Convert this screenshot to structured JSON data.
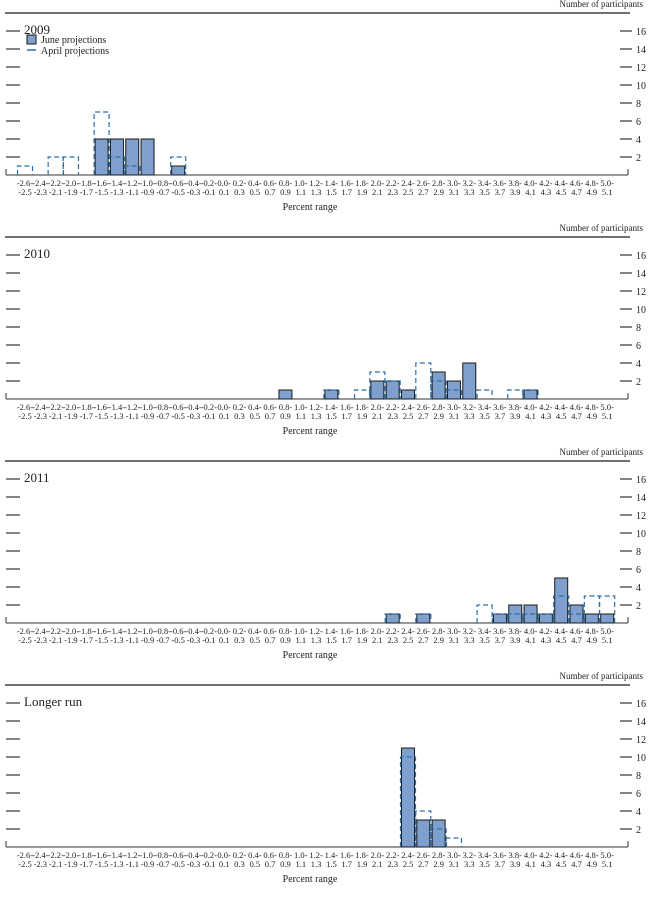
{
  "chart_data": {
    "type": "bar",
    "ylabel": "Number of participants",
    "xlabel": "Percent range",
    "ylim": [
      0,
      17
    ],
    "yticks": [
      2,
      4,
      6,
      8,
      10,
      12,
      14,
      16
    ],
    "legend": {
      "placement": "top-left",
      "june": "June projections",
      "april": "April projections"
    },
    "colors": {
      "june_fill": "#7f9fcc",
      "june_stroke": "#1a1a1a",
      "april_stroke": "#2a6fa8",
      "axis": "#333333"
    },
    "bins_lo": [
      "-2.6",
      "-2.4",
      "-2.2",
      "-2.0",
      "-1.8",
      "-1.6",
      "-1.4",
      "-1.2",
      "-1.0",
      "-0.8",
      "-0.6",
      "-0.4",
      "-0.2",
      "0.0",
      "0.2",
      "0.4",
      "0.6",
      "0.8",
      "1.0",
      "1.2",
      "1.4",
      "1.6",
      "1.8",
      "2.0",
      "2.2",
      "2.4",
      "2.6",
      "2.8",
      "3.0",
      "3.2",
      "3.4",
      "3.6",
      "3.8",
      "4.0",
      "4.2",
      "4.4",
      "4.6",
      "4.8",
      "5.0"
    ],
    "bins_hi": [
      "-2.5",
      "-2.3",
      "-2.1",
      "-1.9",
      "-1.7",
      "-1.5",
      "-1.3",
      "-1.1",
      "-0.9",
      "-0.7",
      "-0.5",
      "-0.3",
      "-0.1",
      "0.1",
      "0.3",
      "0.5",
      "0.7",
      "0.9",
      "1.1",
      "1.3",
      "1.5",
      "1.7",
      "1.9",
      "2.1",
      "2.3",
      "2.5",
      "2.7",
      "2.9",
      "3.1",
      "3.3",
      "3.5",
      "3.7",
      "3.9",
      "4.1",
      "4.3",
      "4.5",
      "4.7",
      "4.9",
      "5.1"
    ],
    "panels": [
      {
        "title": "2009",
        "legend": true,
        "june": {
          "-1.6": 4,
          "-1.4": 4,
          "-1.2": 4,
          "-1.0": 4,
          "-0.6": 1
        },
        "april": {
          "-2.6": 1,
          "-2.2": 2,
          "-2.0": 2,
          "-1.6": 7,
          "-1.4": 2,
          "-1.2": 1,
          "-0.6": 2
        }
      },
      {
        "title": "2010",
        "legend": false,
        "june": {
          "0.8": 1,
          "1.4": 1,
          "2.0": 2,
          "2.2": 2,
          "2.4": 1,
          "2.8": 3,
          "3.0": 2,
          "3.2": 4,
          "4.0": 1
        },
        "april": {
          "1.4": 1,
          "1.8": 1,
          "2.0": 3,
          "2.2": 2,
          "2.6": 4,
          "2.8": 2,
          "3.0": 1,
          "3.4": 1,
          "3.8": 1,
          "4.0": 1
        }
      },
      {
        "title": "2011",
        "legend": false,
        "june": {
          "2.2": 1,
          "2.6": 1,
          "3.6": 1,
          "3.8": 2,
          "4.0": 2,
          "4.2": 1,
          "4.4": 5,
          "4.6": 2,
          "4.8": 1,
          "5.0": 1
        },
        "april": {
          "2.2": 1,
          "2.6": 1,
          "3.4": 2,
          "3.6": 1,
          "3.8": 1,
          "4.0": 1,
          "4.2": 1,
          "4.4": 3,
          "4.6": 1,
          "4.8": 3,
          "5.0": 3
        }
      },
      {
        "title": "Longer run",
        "legend": false,
        "june": {
          "2.4": 11,
          "2.6": 3,
          "2.8": 3
        },
        "april": {
          "2.4": 10,
          "2.6": 4,
          "2.8": 2,
          "3.0": 1
        }
      }
    ]
  }
}
